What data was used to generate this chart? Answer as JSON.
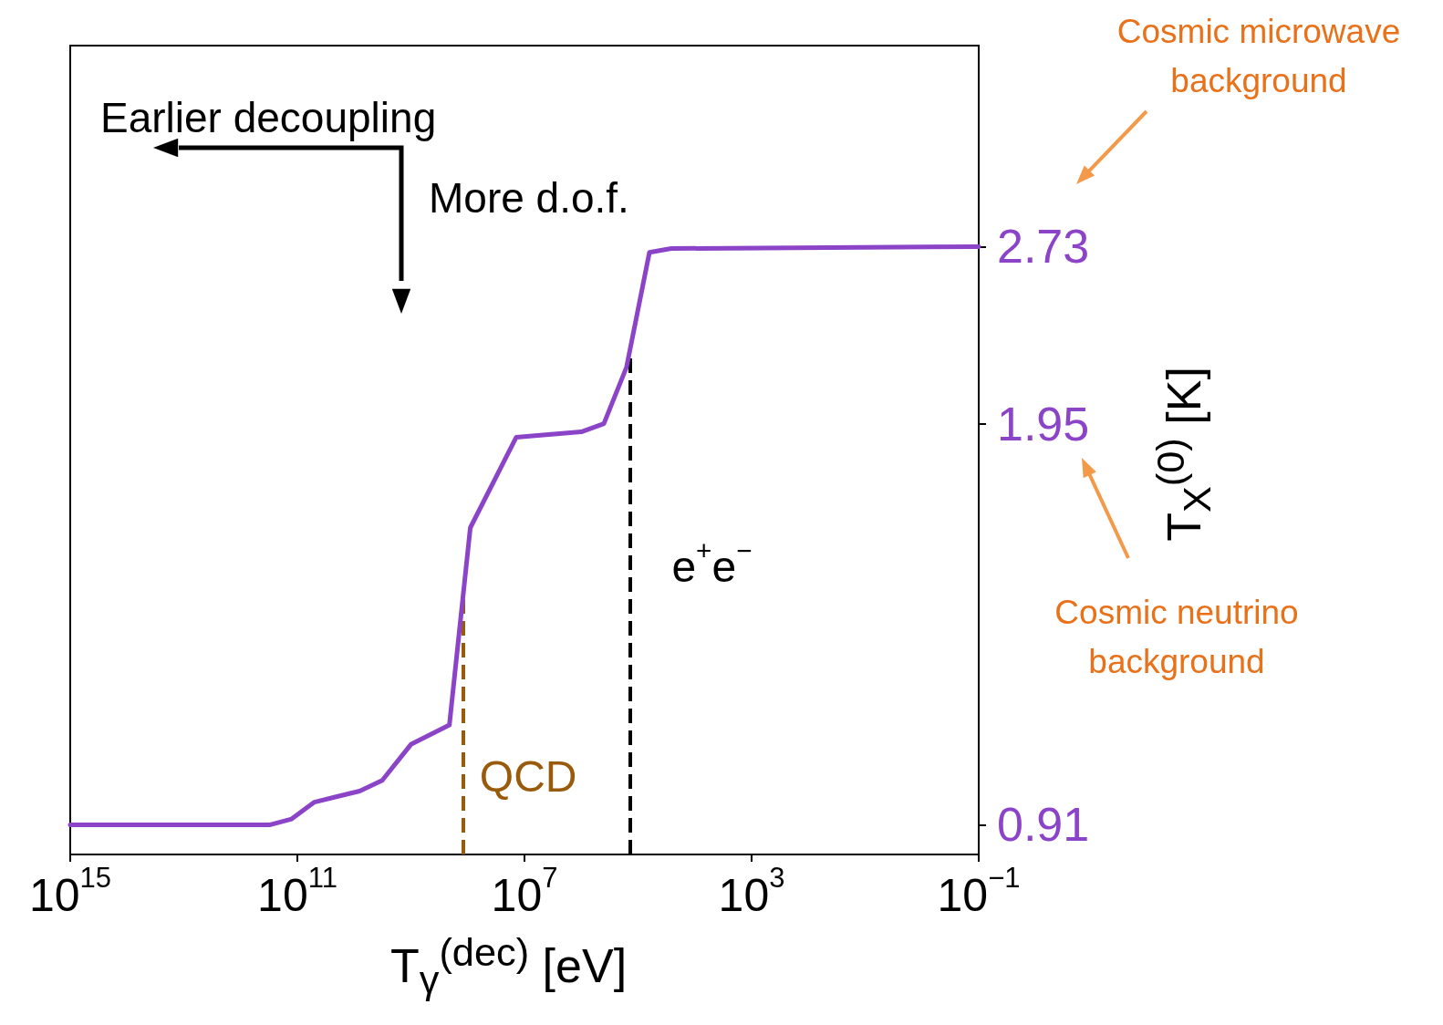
{
  "chart_data": {
    "type": "line",
    "xlabel": "T$_{γ}$$^{(dec)}$ [eV]",
    "ylabel": "T$_{X}$$^{(0)}$ [K]",
    "log": "xy",
    "xlim": [
      1000000000000000.0,
      0.1
    ],
    "xticks": [
      {
        "value": 1000000000000000.0,
        "label": "10$^{15}$"
      },
      {
        "value": 100000000000.0,
        "label": "10$^{11}$"
      },
      {
        "value": 10000000.0,
        "label": "10$^{7}$"
      },
      {
        "value": 1000,
        "label": "10$^{3}$"
      },
      {
        "value": 0.1,
        "label": "10$^{−1}$"
      }
    ],
    "ylim": [
      0.86,
      4.0
    ],
    "yticks": [
      0.91,
      1.95,
      2.73
    ],
    "grid": false,
    "marker": "none",
    "line_style": "solid",
    "series": [
      {
        "color": "#8b43c8",
        "x": [
          1000000000000000.0,
          300000000000.0,
          126000000000.0,
          50000000000.0,
          20000000000.0,
          8000000000.0,
          3200000000.0,
          1000000000.0,
          210000000.0,
          90000000.0,
          14000000.0,
          1000000.0,
          400000.0,
          160000.0,
          63000.0,
          26000.0,
          0.1
        ],
        "values": [
          0.91,
          0.91,
          0.92,
          0.95,
          0.96,
          0.97,
          0.99,
          1.06,
          1.1,
          1.6,
          1.9,
          1.92,
          1.95,
          2.17,
          2.7,
          2.72,
          2.73
        ]
      }
    ],
    "ref_lines": [
      {
        "axis": "x",
        "value": 120000000.0,
        "label": "QCD",
        "color": "#9a5a0c",
        "line_style": "dashed"
      },
      {
        "axis": "x",
        "value": 140000.0,
        "label": "e$^{+}$e$^{−}$",
        "color": "#000000",
        "line_style": "dashed"
      }
    ],
    "annotations": [
      "Earlier decoupling",
      "More d.o.f.",
      "Cosmic microwave background",
      "Cosmic neutrino background"
    ]
  }
}
